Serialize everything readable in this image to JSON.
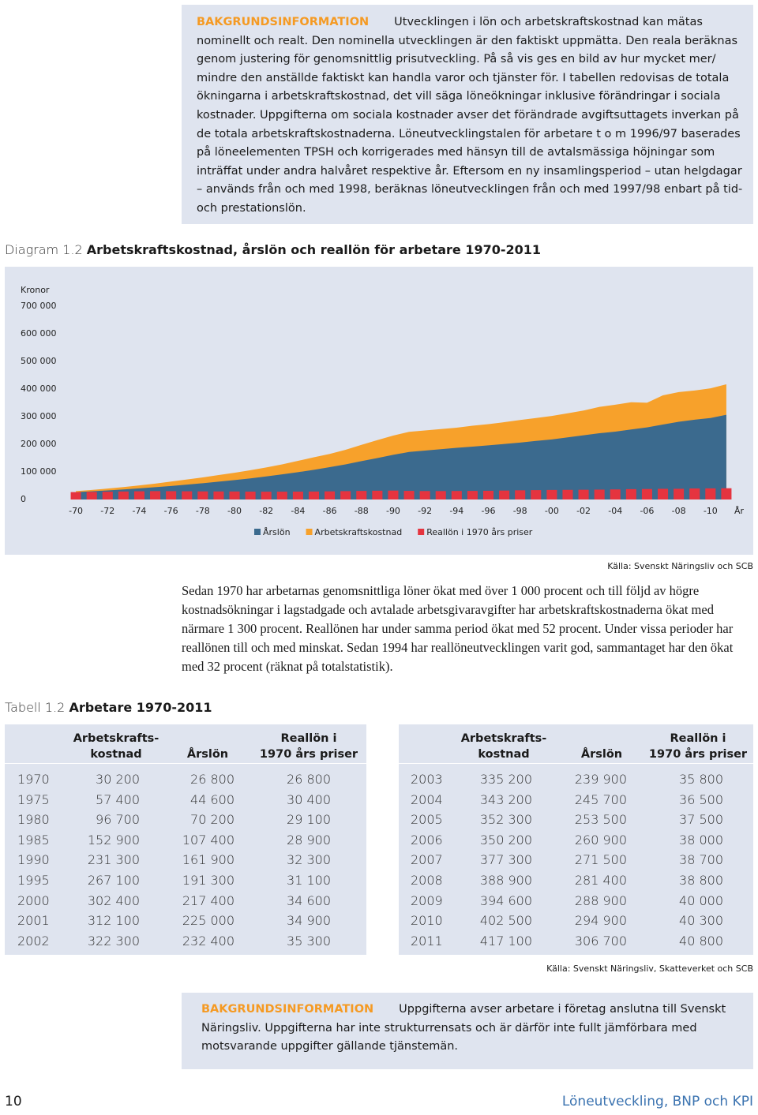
{
  "info_top": {
    "lead": "BAKGRUNDSINFORMATION",
    "text": "Utvecklingen i lön och arbetskraftskostnad kan mätas nominellt och realt. Den nominella utvecklingen är den faktiskt uppmätta. Den reala beräknas genom justering för genomsnittlig prisutveckling. På så vis ges en bild av hur mycket mer/ mindre den anställde faktiskt kan handla varor och tjänster för. I tabellen redovisas de totala ökningarna i arbetskraftskostnad, det vill säga löneökningar inklusive förändringar i sociala kostnader. Uppgifterna om sociala kostnader avser det förändrade avgiftsuttagets inverkan på de totala arbetskraftskostnaderna. Löneutvecklingstalen för arbetare t o m 1996/97 baserades på löneelementen TPSH och korrigerades med hänsyn till de avtalsmässiga höjningar som inträffat under andra halvåret respektive år. Eftersom en ny insamlingsperiod – utan helgdagar – används från och med 1998, beräknas löneutvecklingen från och med 1997/98 enbart på tid- och prestationslön."
  },
  "diagram": {
    "number": "Diagram 1.2",
    "title": "Arbetskraftskostnad, årslön och reallön för arbetare 1970-2011"
  },
  "chart_data": {
    "type": "area",
    "y_label": "Kronor",
    "x_label": "År",
    "x": [
      1970,
      1971,
      1972,
      1973,
      1974,
      1975,
      1976,
      1977,
      1978,
      1979,
      1980,
      1981,
      1982,
      1983,
      1984,
      1985,
      1986,
      1987,
      1988,
      1989,
      1990,
      1991,
      1992,
      1993,
      1994,
      1995,
      1996,
      1997,
      1998,
      1999,
      2000,
      2001,
      2002,
      2003,
      2004,
      2005,
      2006,
      2007,
      2008,
      2009,
      2010,
      2011
    ],
    "series": [
      {
        "name": "Årslön",
        "type": "area",
        "color": "#3b6a8e",
        "values": [
          26800,
          29800,
          33000,
          36500,
          40500,
          44600,
          49000,
          54000,
          59000,
          64500,
          70200,
          76500,
          83500,
          91000,
          99000,
          107400,
          117000,
          127000,
          139000,
          150000,
          161900,
          172000,
          177000,
          182000,
          187000,
          191300,
          196000,
          201000,
          206000,
          212000,
          217400,
          225000,
          232400,
          239900,
          245700,
          253500,
          260900,
          271500,
          281400,
          288900,
          294900,
          306700
        ]
      },
      {
        "name": "Arbetskraftskostnad",
        "type": "area",
        "color": "#f7a12b",
        "values": [
          30200,
          34500,
          39500,
          45000,
          51000,
          57400,
          65000,
          72500,
          80000,
          88500,
          96700,
          106000,
          116000,
          127000,
          140000,
          152900,
          165000,
          180000,
          198000,
          215000,
          231300,
          245000,
          250000,
          255000,
          260000,
          267100,
          273000,
          280000,
          288000,
          295000,
          302400,
          312100,
          322300,
          335200,
          343200,
          352300,
          350200,
          377300,
          388900,
          394600,
          402500,
          417100
        ]
      },
      {
        "name": "Reallön i 1970 års priser",
        "type": "bar",
        "color": "#e5343f",
        "values": [
          26800,
          27500,
          28200,
          29000,
          29800,
          30400,
          30200,
          29800,
          29400,
          29200,
          29100,
          28600,
          28300,
          28400,
          28600,
          28900,
          29500,
          30300,
          31000,
          31800,
          32300,
          31200,
          30600,
          30500,
          30800,
          31100,
          31600,
          32400,
          33300,
          34000,
          34600,
          34900,
          35300,
          35800,
          36500,
          37500,
          38000,
          38700,
          38800,
          40000,
          40300,
          40800
        ]
      }
    ],
    "xlim": [
      1969,
      2012
    ],
    "xticks": [
      {
        "value": 1970,
        "label": "-70"
      },
      {
        "value": 1972,
        "label": "-72"
      },
      {
        "value": 1974,
        "label": "-74"
      },
      {
        "value": 1976,
        "label": "-76"
      },
      {
        "value": 1978,
        "label": "-78"
      },
      {
        "value": 1980,
        "label": "-80"
      },
      {
        "value": 1982,
        "label": "-82"
      },
      {
        "value": 1984,
        "label": "-84"
      },
      {
        "value": 1986,
        "label": "-86"
      },
      {
        "value": 1988,
        "label": "-88"
      },
      {
        "value": 1990,
        "label": "-90"
      },
      {
        "value": 1992,
        "label": "-92"
      },
      {
        "value": 1994,
        "label": "-94"
      },
      {
        "value": 1996,
        "label": "-96"
      },
      {
        "value": 1998,
        "label": "-98"
      },
      {
        "value": 2000,
        "label": "-00"
      },
      {
        "value": 2002,
        "label": "-02"
      },
      {
        "value": 2004,
        "label": "-04"
      },
      {
        "value": 2006,
        "label": "-06"
      },
      {
        "value": 2008,
        "label": "-08"
      },
      {
        "value": 2010,
        "label": "-10"
      }
    ],
    "ylim": [
      0,
      700000
    ],
    "yticks": [
      0,
      {
        "value": 100000,
        "label": "100 000"
      },
      {
        "value": 200000,
        "label": "200 000"
      },
      {
        "value": 300000,
        "label": "300 000"
      },
      {
        "value": 400000,
        "label": "400 000"
      },
      {
        "value": 500000,
        "label": "500 000"
      },
      {
        "value": 600000,
        "label": "600 000"
      },
      {
        "value": 700000,
        "label": "700 000"
      }
    ],
    "grid": false,
    "legend": "bottom",
    "source": "Källa: Svenskt Näringsliv och SCB"
  },
  "paragraph": "Sedan 1970 har arbetarnas genomsnittliga löner ökat med över 1 000 procent och till följd av högre kostnadsökningar i lagstadgade och avtalade arbetsgivaravgifter har arbetskraftskostnaderna ökat med närmare 1 300 procent. Reallönen har under samma period ökat med 52 procent. Under vissa perioder har reallönen till och med minskat. Sedan 1994 har reallöneutvecklingen varit god, sammantaget har den ökat med 32 procent (räknat på totalstatistik).",
  "table": {
    "number": "Tabell 1.2",
    "title": "Arbetare 1970-2011",
    "headers": [
      "Arbetskrafts-\nkostnad",
      "Årslön",
      "Reallön i\n1970 års priser"
    ],
    "left_rows": [
      [
        "1970",
        "30 200",
        "26 800",
        "26 800"
      ],
      [
        "1975",
        "57 400",
        "44 600",
        "30 400"
      ],
      [
        "1980",
        "96 700",
        "70 200",
        "29 100"
      ],
      [
        "1985",
        "152 900",
        "107 400",
        "28 900"
      ],
      [
        "1990",
        "231 300",
        "161 900",
        "32 300"
      ],
      [
        "1995",
        "267 100",
        "191 300",
        "31 100"
      ],
      [
        "2000",
        "302 400",
        "217 400",
        "34 600"
      ],
      [
        "2001",
        "312 100",
        "225 000",
        "34 900"
      ],
      [
        "2002",
        "322 300",
        "232 400",
        "35 300"
      ]
    ],
    "right_rows": [
      [
        "2003",
        "335 200",
        "239 900",
        "35 800"
      ],
      [
        "2004",
        "343 200",
        "245 700",
        "36 500"
      ],
      [
        "2005",
        "352 300",
        "253 500",
        "37 500"
      ],
      [
        "2006",
        "350 200",
        "260 900",
        "38 000"
      ],
      [
        "2007",
        "377 300",
        "271 500",
        "38 700"
      ],
      [
        "2008",
        "388 900",
        "281 400",
        "38 800"
      ],
      [
        "2009",
        "394 600",
        "288 900",
        "40 000"
      ],
      [
        "2010",
        "402 500",
        "294 900",
        "40 300"
      ],
      [
        "2011",
        "417 100",
        "306 700",
        "40 800"
      ]
    ],
    "source": "Källa: Svenskt Näringsliv, Skatteverket och SCB"
  },
  "info_bottom": {
    "lead": "BAKGRUNDSINFORMATION",
    "text": "Uppgifterna avser arbetare i företag anslutna till Svenskt Näringsliv. Uppgifterna har inte strukturrensats och är därför inte fullt jämförbara med motsvarande uppgifter gällande tjänstemän."
  },
  "footer": {
    "page": "10",
    "title": "Löneutveckling, BNP och KPI"
  }
}
